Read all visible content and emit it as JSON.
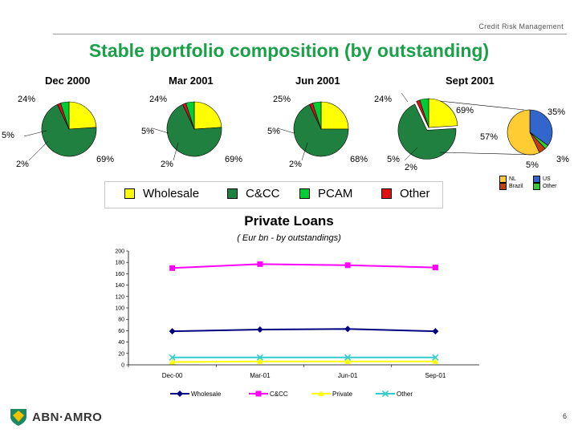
{
  "header": {
    "section": "Credit Risk Management",
    "title": "Stable portfolio composition (by outstanding)"
  },
  "colors": {
    "wholesale": "#ffff00",
    "ccc": "#208040",
    "pcam": "#00cc33",
    "other": "#e01010",
    "nl": "#ffcc33",
    "brazil": "#c04010",
    "us": "#3366cc",
    "sub_other": "#33cc33",
    "title_green": "#1aa048"
  },
  "chart_data": [
    {
      "type": "pie",
      "title": "Dec 2000",
      "categories": [
        "Wholesale",
        "C&CC",
        "PCAM",
        "Other"
      ],
      "values": [
        24,
        69,
        5,
        2
      ],
      "labels": [
        "24%",
        "69%",
        "5%",
        "2%"
      ]
    },
    {
      "type": "pie",
      "title": "Mar 2001",
      "categories": [
        "Wholesale",
        "C&CC",
        "PCAM",
        "Other"
      ],
      "values": [
        24,
        69,
        5,
        2
      ],
      "labels": [
        "24%",
        "69%",
        "5%",
        "2%"
      ]
    },
    {
      "type": "pie",
      "title": "Jun 2001",
      "categories": [
        "Wholesale",
        "C&CC",
        "PCAM",
        "Other"
      ],
      "values": [
        25,
        68,
        5,
        2
      ],
      "labels": [
        "25%",
        "68%",
        "5%",
        "2%"
      ]
    },
    {
      "type": "pie",
      "title": "Sept 2001",
      "categories": [
        "Wholesale",
        "C&CC",
        "PCAM",
        "Other"
      ],
      "values": [
        24,
        69,
        5,
        2
      ],
      "labels": [
        "24%",
        "69%",
        "5%",
        "2%"
      ],
      "breakdown": {
        "of": "C&CC",
        "label": "69%",
        "categories": [
          "NL",
          "Brazil",
          "US",
          "Other"
        ],
        "values": [
          57,
          5,
          35,
          3
        ],
        "labels": [
          "57%",
          "5%",
          "35%",
          "3%"
        ]
      }
    },
    {
      "type": "line",
      "title": "Private Loans",
      "subtitle": "( Eur bn - by outstandings)",
      "categories": [
        "Dec-00",
        "Mar-01",
        "Jun-01",
        "Sep-01"
      ],
      "ylim": [
        0,
        200
      ],
      "yticks": [
        "0",
        "20",
        "40",
        "60",
        "80",
        "100",
        "120",
        "140",
        "160",
        "180",
        "200"
      ],
      "series": [
        {
          "name": "Wholesale",
          "values": [
            59,
            62,
            63,
            59
          ],
          "color": "#000080",
          "marker": "diamond"
        },
        {
          "name": "C&CC",
          "values": [
            170,
            177,
            175,
            171
          ],
          "color": "#ff00ff",
          "marker": "square"
        },
        {
          "name": "Private",
          "values": [
            5,
            6,
            6,
            6
          ],
          "color": "#ffff00",
          "marker": "triangle"
        },
        {
          "name": "Other",
          "values": [
            13,
            13,
            13,
            13
          ],
          "color": "#33cccc",
          "marker": "x"
        }
      ]
    }
  ],
  "pie_legend": [
    "Wholesale",
    "C&CC",
    "PCAM",
    "Other"
  ],
  "sub_legend": [
    "NL",
    "Brazil",
    "US",
    "Other"
  ],
  "logo": {
    "text": "ABN·AMRO"
  },
  "page_number": "6"
}
